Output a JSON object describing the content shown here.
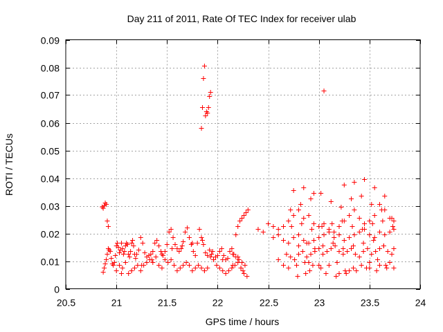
{
  "chart_data": {
    "type": "scatter",
    "title": "Day 211 of 2011, Rate Of TEC Index for receiver ulab",
    "xlabel": "GPS time / hours",
    "ylabel": "ROTI / TECUs",
    "xlim": [
      20.5,
      24
    ],
    "ylim": [
      0,
      0.09
    ],
    "xticks": [
      20.5,
      21,
      21.5,
      22,
      22.5,
      23,
      23.5,
      24
    ],
    "xtick_labels": [
      "20.5",
      "21",
      "21.5",
      "22",
      "22.5",
      "23",
      "23.5",
      "24"
    ],
    "yticks": [
      0,
      0.01,
      0.02,
      0.03,
      0.04,
      0.05,
      0.06,
      0.07,
      0.08,
      0.09
    ],
    "ytick_labels": [
      "0",
      "0.01",
      "0.02",
      "0.03",
      "0.04",
      "0.05",
      "0.06",
      "0.07",
      "0.08",
      "0.09"
    ],
    "grid": true,
    "marker": "+",
    "marker_color": "#ff0000",
    "series": [
      {
        "name": "ROTI",
        "x": [
          20.86,
          20.87,
          20.88,
          20.89,
          20.9,
          20.91,
          20.92,
          20.87,
          20.88,
          20.89,
          20.9,
          20.91,
          20.92,
          20.93,
          20.94,
          20.95,
          20.96,
          20.97,
          20.98,
          20.99,
          21.0,
          21.01,
          21.02,
          21.03,
          21.04,
          21.05,
          21.06,
          21.07,
          21.08,
          21.09,
          21.1,
          21.11,
          21.12,
          21.13,
          21.14,
          21.15,
          21.16,
          21.17,
          21.18,
          21.19,
          21.2,
          21.22,
          21.24,
          21.26,
          21.28,
          21.3,
          21.32,
          21.34,
          21.36,
          21.38,
          21.4,
          21.42,
          21.44,
          21.46,
          21.48,
          21.5,
          21.52,
          21.54,
          21.56,
          21.58,
          21.6,
          21.62,
          21.64,
          21.66,
          21.68,
          21.7,
          21.72,
          21.74,
          21.76,
          21.78,
          21.8,
          21.82,
          21.84,
          21.86,
          21.88,
          21.9,
          21.92,
          21.94,
          21.96,
          21.98,
          22.0,
          22.02,
          22.04,
          22.06,
          22.08,
          22.1,
          22.12,
          22.14,
          22.16,
          22.18,
          22.2,
          22.22,
          22.24,
          22.26,
          22.28,
          22.3,
          21.0,
          21.03,
          21.06,
          21.09,
          21.12,
          21.15,
          21.18,
          21.21,
          21.24,
          21.27,
          21.3,
          21.33,
          21.36,
          21.39,
          21.42,
          21.45,
          21.48,
          21.51,
          21.54,
          21.57,
          21.6,
          21.63,
          21.66,
          21.69,
          21.72,
          21.75,
          21.78,
          21.81,
          21.84,
          21.87,
          21.9,
          21.93,
          21.96,
          21.99,
          22.02,
          22.05,
          22.08,
          22.11,
          22.14,
          22.17,
          22.2,
          22.23,
          22.26,
          22.29,
          21.05,
          21.15,
          21.25,
          21.35,
          21.45,
          21.55,
          21.65,
          21.75,
          21.85,
          21.95,
          22.05,
          22.15,
          22.25,
          22.15,
          22.18,
          22.21,
          22.24,
          22.27,
          22.2,
          22.23,
          21.84,
          21.85,
          21.86,
          21.87,
          21.88,
          21.89,
          21.9,
          21.91,
          21.92,
          21.93,
          21.87,
          22.4,
          22.45,
          22.5,
          22.55,
          22.6,
          22.65,
          22.7,
          22.75,
          22.8,
          22.85,
          22.9,
          22.95,
          23.0,
          23.05,
          23.1,
          23.15,
          23.2,
          23.25,
          23.3,
          23.35,
          23.4,
          23.45,
          23.5,
          23.55,
          23.6,
          23.65,
          23.7,
          23.74,
          22.55,
          22.6,
          22.65,
          22.7,
          22.75,
          22.8,
          22.85,
          22.9,
          22.95,
          23.0,
          23.05,
          23.1,
          23.15,
          23.2,
          23.25,
          23.3,
          23.35,
          23.4,
          23.45,
          23.5,
          23.55,
          23.6,
          23.65,
          23.7,
          23.74,
          22.68,
          22.72,
          22.76,
          22.8,
          22.84,
          22.88,
          22.92,
          22.96,
          23.0,
          23.04,
          23.08,
          23.12,
          23.16,
          23.2,
          23.24,
          23.28,
          23.32,
          23.36,
          23.4,
          23.44,
          23.48,
          23.52,
          23.56,
          23.6,
          23.64,
          23.68,
          23.72,
          22.7,
          22.78,
          22.86,
          22.94,
          23.02,
          23.1,
          23.18,
          23.26,
          23.34,
          23.42,
          23.5,
          23.58,
          23.66,
          23.74,
          22.72,
          22.82,
          22.92,
          23.02,
          23.12,
          23.22,
          23.32,
          23.42,
          23.52,
          23.62,
          23.72,
          22.75,
          22.85,
          22.95,
          23.25,
          23.35,
          23.45,
          23.55,
          23.65,
          22.6,
          22.65,
          22.9,
          23.0,
          23.2,
          23.3,
          23.5,
          23.6,
          23.7,
          22.8,
          22.88,
          22.96,
          23.04,
          23.14,
          23.24,
          23.34,
          23.44,
          23.54,
          23.64,
          23.74,
          22.73,
          22.83,
          22.93,
          23.03,
          23.13,
          23.23,
          23.33,
          23.43,
          23.53,
          23.63,
          23.73,
          22.79,
          22.87,
          22.91,
          23.07,
          23.17,
          23.27,
          23.37,
          23.47,
          23.57,
          23.67,
          23.05
        ],
        "y": [
          0.0296,
          0.0291,
          0.03,
          0.031,
          0.0305,
          0.0245,
          0.0225,
          0.006,
          0.0075,
          0.009,
          0.0105,
          0.0125,
          0.0145,
          0.014,
          0.0135,
          0.011,
          0.009,
          0.0085,
          0.0095,
          0.012,
          0.0155,
          0.0165,
          0.015,
          0.013,
          0.014,
          0.0165,
          0.0145,
          0.0125,
          0.0135,
          0.0155,
          0.0165,
          0.016,
          0.0125,
          0.0115,
          0.0135,
          0.0165,
          0.0175,
          0.0155,
          0.0125,
          0.011,
          0.0125,
          0.014,
          0.0185,
          0.0165,
          0.013,
          0.0115,
          0.012,
          0.0125,
          0.0135,
          0.0165,
          0.0175,
          0.0155,
          0.0135,
          0.012,
          0.0135,
          0.016,
          0.0205,
          0.0215,
          0.0185,
          0.016,
          0.0145,
          0.0135,
          0.0145,
          0.017,
          0.0205,
          0.022,
          0.0185,
          0.016,
          0.0135,
          0.012,
          0.0165,
          0.0215,
          0.0185,
          0.016,
          0.013,
          0.012,
          0.014,
          0.0125,
          0.0105,
          0.0115,
          0.012,
          0.0135,
          0.0145,
          0.012,
          0.0105,
          0.011,
          0.0135,
          0.0145,
          0.0125,
          0.0195,
          0.0225,
          0.0245,
          0.0255,
          0.0265,
          0.0275,
          0.0285,
          0.0065,
          0.0085,
          0.0075,
          0.0095,
          0.0055,
          0.0065,
          0.0075,
          0.0085,
          0.0065,
          0.0085,
          0.0095,
          0.0105,
          0.0095,
          0.0115,
          0.0085,
          0.0075,
          0.0105,
          0.0095,
          0.0105,
          0.0085,
          0.0065,
          0.0075,
          0.0085,
          0.0095,
          0.0085,
          0.0065,
          0.0075,
          0.0085,
          0.0075,
          0.0065,
          0.0075,
          0.0115,
          0.0105,
          0.0085,
          0.0075,
          0.0065,
          0.0055,
          0.0065,
          0.0075,
          0.0085,
          0.0095,
          0.0075,
          0.0055,
          0.0045,
          0.0055,
          0.0065,
          0.0085,
          0.0105,
          0.0125,
          0.0145,
          0.0155,
          0.0165,
          0.0175,
          0.0135,
          0.0105,
          0.0085,
          0.0065,
          0.0125,
          0.0115,
          0.0105,
          0.0095,
          0.0085,
          0.0115,
          0.0075,
          0.058,
          0.0655,
          0.076,
          0.0805,
          0.0625,
          0.064,
          0.0635,
          0.0655,
          0.0695,
          0.071,
          0.0065,
          0.0215,
          0.0205,
          0.0235,
          0.0225,
          0.0215,
          0.0225,
          0.0245,
          0.0265,
          0.0285,
          0.0255,
          0.0265,
          0.0235,
          0.0225,
          0.0235,
          0.0215,
          0.0205,
          0.0225,
          0.0245,
          0.0265,
          0.0285,
          0.0255,
          0.0235,
          0.0245,
          0.0265,
          0.0305,
          0.0285,
          0.0255,
          0.0245,
          0.0185,
          0.0195,
          0.0175,
          0.0165,
          0.0185,
          0.0195,
          0.0175,
          0.0165,
          0.0175,
          0.0185,
          0.0195,
          0.0205,
          0.0185,
          0.0195,
          0.0175,
          0.0185,
          0.0195,
          0.0205,
          0.0215,
          0.0195,
          0.0185,
          0.0205,
          0.0195,
          0.0205,
          0.0215,
          0.0125,
          0.0115,
          0.0105,
          0.0125,
          0.0135,
          0.0115,
          0.0125,
          0.0135,
          0.0145,
          0.0125,
          0.0135,
          0.0145,
          0.0155,
          0.0135,
          0.0125,
          0.0135,
          0.0145,
          0.0125,
          0.0115,
          0.0135,
          0.0145,
          0.0125,
          0.0135,
          0.0145,
          0.0155,
          0.0135,
          0.0125,
          0.0075,
          0.0085,
          0.0095,
          0.0085,
          0.0075,
          0.0085,
          0.0095,
          0.0065,
          0.0075,
          0.0085,
          0.0095,
          0.0105,
          0.0085,
          0.0075,
          0.0285,
          0.0305,
          0.0325,
          0.0345,
          0.0315,
          0.0295,
          0.0325,
          0.0335,
          0.0305,
          0.0285,
          0.0255,
          0.0355,
          0.0365,
          0.0345,
          0.0375,
          0.0385,
          0.0395,
          0.0365,
          0.0335,
          0.0105,
          0.0085,
          0.0095,
          0.0085,
          0.0055,
          0.0065,
          0.0075,
          0.0085,
          0.0095,
          0.0155,
          0.0165,
          0.0145,
          0.0155,
          0.0165,
          0.0145,
          0.0155,
          0.0165,
          0.0175,
          0.0155,
          0.0145,
          0.0225,
          0.0235,
          0.0215,
          0.0225,
          0.0235,
          0.0245,
          0.0225,
          0.0215,
          0.0235,
          0.0245,
          0.0225,
          0.0045,
          0.0055,
          0.0065,
          0.0055,
          0.0045,
          0.0055,
          0.0065,
          0.0075,
          0.0065,
          0.0075,
          0.0715
        ]
      }
    ]
  }
}
